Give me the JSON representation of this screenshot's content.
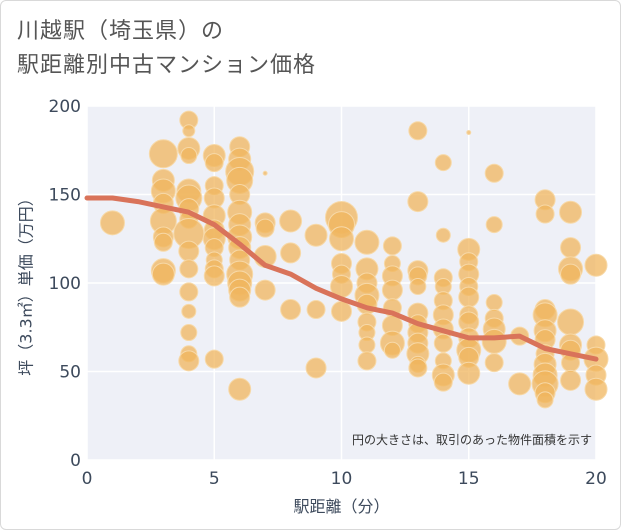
{
  "title": {
    "line1": "川越駅（埼玉県）の",
    "line2": "駅距離別中古マンション価格"
  },
  "chart_data": {
    "type": "scatter",
    "xlabel": "駅距離（分）",
    "ylabel": "坪（3.3㎡）単価（万円）",
    "xlim": [
      0,
      20
    ],
    "ylim": [
      0,
      200
    ],
    "xticks": [
      0,
      5,
      10,
      15,
      20
    ],
    "yticks": [
      0,
      50,
      100,
      150,
      200
    ],
    "grid": true,
    "annotation": "円の大きさは、取引のあった物件面積を示す",
    "colors": {
      "bubble_fill": "#f0b65d",
      "bubble_stroke": "#f7d9a8",
      "trend_line": "#d9735a",
      "plot_background": "#eef0f7",
      "grid": "#ffffff"
    },
    "trend": {
      "x": [
        0,
        1,
        2,
        3,
        4,
        5,
        6,
        7,
        8,
        9,
        10,
        11,
        12,
        13,
        14,
        15,
        16,
        17,
        18,
        19,
        20
      ],
      "y": [
        148,
        148,
        146,
        143,
        140,
        133,
        122,
        110,
        105,
        97,
        91,
        86,
        83,
        77,
        73,
        69,
        69,
        70,
        63,
        60,
        57
      ]
    },
    "points": [
      {
        "x": 1,
        "y": 134,
        "s": 12
      },
      {
        "x": 3,
        "y": 173,
        "s": 14
      },
      {
        "x": 3,
        "y": 158,
        "s": 11
      },
      {
        "x": 3,
        "y": 152,
        "s": 12
      },
      {
        "x": 3,
        "y": 145,
        "s": 10
      },
      {
        "x": 3,
        "y": 135,
        "s": 13
      },
      {
        "x": 3,
        "y": 126,
        "s": 10
      },
      {
        "x": 3,
        "y": 123,
        "s": 9
      },
      {
        "x": 3,
        "y": 107,
        "s": 12
      },
      {
        "x": 3,
        "y": 105,
        "s": 11
      },
      {
        "x": 4,
        "y": 192,
        "s": 9
      },
      {
        "x": 4,
        "y": 186,
        "s": 6
      },
      {
        "x": 4,
        "y": 176,
        "s": 11
      },
      {
        "x": 4,
        "y": 172,
        "s": 8
      },
      {
        "x": 4,
        "y": 152,
        "s": 12
      },
      {
        "x": 4,
        "y": 148,
        "s": 13
      },
      {
        "x": 4,
        "y": 142,
        "s": 10
      },
      {
        "x": 4,
        "y": 136,
        "s": 9
      },
      {
        "x": 4,
        "y": 128,
        "s": 15
      },
      {
        "x": 4,
        "y": 118,
        "s": 10
      },
      {
        "x": 4,
        "y": 108,
        "s": 9
      },
      {
        "x": 4,
        "y": 95,
        "s": 9
      },
      {
        "x": 4,
        "y": 84,
        "s": 7
      },
      {
        "x": 4,
        "y": 72,
        "s": 8
      },
      {
        "x": 4,
        "y": 60,
        "s": 8
      },
      {
        "x": 4,
        "y": 56,
        "s": 10
      },
      {
        "x": 5,
        "y": 172,
        "s": 11
      },
      {
        "x": 5,
        "y": 168,
        "s": 9
      },
      {
        "x": 5,
        "y": 155,
        "s": 9
      },
      {
        "x": 5,
        "y": 148,
        "s": 10
      },
      {
        "x": 5,
        "y": 138,
        "s": 11
      },
      {
        "x": 5,
        "y": 130,
        "s": 10
      },
      {
        "x": 5,
        "y": 125,
        "s": 11
      },
      {
        "x": 5,
        "y": 120,
        "s": 9
      },
      {
        "x": 5,
        "y": 113,
        "s": 8
      },
      {
        "x": 5,
        "y": 108,
        "s": 9
      },
      {
        "x": 5,
        "y": 104,
        "s": 10
      },
      {
        "x": 5,
        "y": 57,
        "s": 9
      },
      {
        "x": 6,
        "y": 177,
        "s": 10
      },
      {
        "x": 6,
        "y": 170,
        "s": 11
      },
      {
        "x": 6,
        "y": 163,
        "s": 14
      },
      {
        "x": 6,
        "y": 158,
        "s": 13
      },
      {
        "x": 6,
        "y": 150,
        "s": 10
      },
      {
        "x": 6,
        "y": 140,
        "s": 12
      },
      {
        "x": 6,
        "y": 133,
        "s": 11
      },
      {
        "x": 6,
        "y": 126,
        "s": 12
      },
      {
        "x": 6,
        "y": 120,
        "s": 11
      },
      {
        "x": 6,
        "y": 113,
        "s": 10
      },
      {
        "x": 6,
        "y": 105,
        "s": 13
      },
      {
        "x": 6,
        "y": 100,
        "s": 12
      },
      {
        "x": 6,
        "y": 96,
        "s": 11
      },
      {
        "x": 6,
        "y": 92,
        "s": 10
      },
      {
        "x": 6,
        "y": 40,
        "s": 11
      },
      {
        "x": 7,
        "y": 162,
        "s": 2
      },
      {
        "x": 7,
        "y": 134,
        "s": 10
      },
      {
        "x": 7,
        "y": 131,
        "s": 9
      },
      {
        "x": 7,
        "y": 115,
        "s": 11
      },
      {
        "x": 7,
        "y": 96,
        "s": 10
      },
      {
        "x": 8,
        "y": 135,
        "s": 11
      },
      {
        "x": 8,
        "y": 117,
        "s": 10
      },
      {
        "x": 8,
        "y": 85,
        "s": 10
      },
      {
        "x": 9,
        "y": 127,
        "s": 11
      },
      {
        "x": 9,
        "y": 85,
        "s": 9
      },
      {
        "x": 9,
        "y": 52,
        "s": 10
      },
      {
        "x": 10,
        "y": 137,
        "s": 16
      },
      {
        "x": 10,
        "y": 133,
        "s": 13
      },
      {
        "x": 10,
        "y": 125,
        "s": 12
      },
      {
        "x": 10,
        "y": 111,
        "s": 10
      },
      {
        "x": 10,
        "y": 105,
        "s": 9
      },
      {
        "x": 10,
        "y": 98,
        "s": 11
      },
      {
        "x": 10,
        "y": 84,
        "s": 10
      },
      {
        "x": 11,
        "y": 123,
        "s": 12
      },
      {
        "x": 11,
        "y": 108,
        "s": 11
      },
      {
        "x": 11,
        "y": 100,
        "s": 10
      },
      {
        "x": 11,
        "y": 93,
        "s": 12
      },
      {
        "x": 11,
        "y": 88,
        "s": 10
      },
      {
        "x": 11,
        "y": 78,
        "s": 9
      },
      {
        "x": 11,
        "y": 72,
        "s": 8
      },
      {
        "x": 11,
        "y": 65,
        "s": 8
      },
      {
        "x": 11,
        "y": 56,
        "s": 9
      },
      {
        "x": 12,
        "y": 121,
        "s": 9
      },
      {
        "x": 12,
        "y": 111,
        "s": 8
      },
      {
        "x": 12,
        "y": 104,
        "s": 10
      },
      {
        "x": 12,
        "y": 96,
        "s": 10
      },
      {
        "x": 12,
        "y": 86,
        "s": 9
      },
      {
        "x": 12,
        "y": 76,
        "s": 10
      },
      {
        "x": 12,
        "y": 66,
        "s": 12
      },
      {
        "x": 12,
        "y": 62,
        "s": 8
      },
      {
        "x": 13,
        "y": 186,
        "s": 9
      },
      {
        "x": 13,
        "y": 146,
        "s": 10
      },
      {
        "x": 13,
        "y": 107,
        "s": 10
      },
      {
        "x": 13,
        "y": 104,
        "s": 9
      },
      {
        "x": 13,
        "y": 98,
        "s": 8
      },
      {
        "x": 13,
        "y": 83,
        "s": 10
      },
      {
        "x": 13,
        "y": 77,
        "s": 9
      },
      {
        "x": 13,
        "y": 72,
        "s": 10
      },
      {
        "x": 13,
        "y": 66,
        "s": 10
      },
      {
        "x": 13,
        "y": 60,
        "s": 11
      },
      {
        "x": 13,
        "y": 54,
        "s": 8
      },
      {
        "x": 13,
        "y": 52,
        "s": 9
      },
      {
        "x": 14,
        "y": 168,
        "s": 8
      },
      {
        "x": 14,
        "y": 127,
        "s": 7
      },
      {
        "x": 14,
        "y": 103,
        "s": 9
      },
      {
        "x": 14,
        "y": 98,
        "s": 8
      },
      {
        "x": 14,
        "y": 90,
        "s": 9
      },
      {
        "x": 14,
        "y": 82,
        "s": 10
      },
      {
        "x": 14,
        "y": 74,
        "s": 10
      },
      {
        "x": 14,
        "y": 66,
        "s": 9
      },
      {
        "x": 14,
        "y": 56,
        "s": 8
      },
      {
        "x": 14,
        "y": 48,
        "s": 11
      },
      {
        "x": 14,
        "y": 44,
        "s": 9
      },
      {
        "x": 15,
        "y": 185,
        "s": 2
      },
      {
        "x": 15,
        "y": 119,
        "s": 11
      },
      {
        "x": 15,
        "y": 112,
        "s": 9
      },
      {
        "x": 15,
        "y": 105,
        "s": 10
      },
      {
        "x": 15,
        "y": 98,
        "s": 9
      },
      {
        "x": 15,
        "y": 92,
        "s": 10
      },
      {
        "x": 15,
        "y": 82,
        "s": 9
      },
      {
        "x": 15,
        "y": 78,
        "s": 10
      },
      {
        "x": 15,
        "y": 69,
        "s": 10
      },
      {
        "x": 15,
        "y": 62,
        "s": 12
      },
      {
        "x": 15,
        "y": 58,
        "s": 10
      },
      {
        "x": 15,
        "y": 49,
        "s": 11
      },
      {
        "x": 16,
        "y": 162,
        "s": 9
      },
      {
        "x": 16,
        "y": 133,
        "s": 8
      },
      {
        "x": 16,
        "y": 89,
        "s": 8
      },
      {
        "x": 16,
        "y": 80,
        "s": 9
      },
      {
        "x": 16,
        "y": 74,
        "s": 11
      },
      {
        "x": 16,
        "y": 67,
        "s": 12
      },
      {
        "x": 16,
        "y": 55,
        "s": 9
      },
      {
        "x": 17,
        "y": 70,
        "s": 9
      },
      {
        "x": 17,
        "y": 43,
        "s": 11
      },
      {
        "x": 18,
        "y": 147,
        "s": 10
      },
      {
        "x": 18,
        "y": 139,
        "s": 9
      },
      {
        "x": 18,
        "y": 85,
        "s": 10
      },
      {
        "x": 18,
        "y": 82,
        "s": 12
      },
      {
        "x": 18,
        "y": 73,
        "s": 11
      },
      {
        "x": 18,
        "y": 68,
        "s": 10
      },
      {
        "x": 18,
        "y": 60,
        "s": 9
      },
      {
        "x": 18,
        "y": 54,
        "s": 11
      },
      {
        "x": 18,
        "y": 48,
        "s": 12
      },
      {
        "x": 18,
        "y": 43,
        "s": 13
      },
      {
        "x": 18,
        "y": 38,
        "s": 10
      },
      {
        "x": 18,
        "y": 34,
        "s": 8
      },
      {
        "x": 19,
        "y": 140,
        "s": 11
      },
      {
        "x": 19,
        "y": 120,
        "s": 10
      },
      {
        "x": 19,
        "y": 108,
        "s": 12
      },
      {
        "x": 19,
        "y": 105,
        "s": 10
      },
      {
        "x": 19,
        "y": 78,
        "s": 13
      },
      {
        "x": 19,
        "y": 65,
        "s": 11
      },
      {
        "x": 19,
        "y": 62,
        "s": 10
      },
      {
        "x": 19,
        "y": 55,
        "s": 9
      },
      {
        "x": 19,
        "y": 45,
        "s": 10
      },
      {
        "x": 20,
        "y": 110,
        "s": 11
      },
      {
        "x": 20,
        "y": 65,
        "s": 9
      },
      {
        "x": 20,
        "y": 57,
        "s": 12
      },
      {
        "x": 20,
        "y": 48,
        "s": 10
      },
      {
        "x": 20,
        "y": 40,
        "s": 11
      }
    ]
  }
}
